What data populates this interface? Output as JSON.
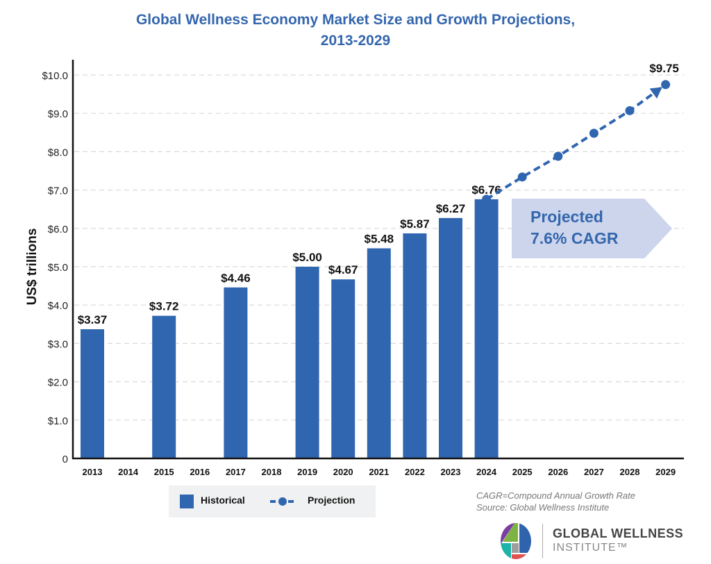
{
  "chart_data": {
    "type": "bar",
    "title": "Global Wellness Economy Market Size and Growth Projections,",
    "title_line2": "2013-2029",
    "xlabel": "",
    "ylabel": "US$ trillions",
    "ylim": [
      0,
      10
    ],
    "y_ticks": [
      {
        "value": 0,
        "label": "0"
      },
      {
        "value": 1,
        "label": "$1.0"
      },
      {
        "value": 2,
        "label": "$2.0"
      },
      {
        "value": 3,
        "label": "$3.0"
      },
      {
        "value": 4,
        "label": "$4.0"
      },
      {
        "value": 5,
        "label": "$5.0"
      },
      {
        "value": 6,
        "label": "$6.0"
      },
      {
        "value": 7,
        "label": "$7.0"
      },
      {
        "value": 8,
        "label": "$8.0"
      },
      {
        "value": 9,
        "label": "$9.0"
      },
      {
        "value": 10,
        "label": "$10.0"
      }
    ],
    "grid": true,
    "categories": [
      "2013",
      "2014",
      "2015",
      "2016",
      "2017",
      "2018",
      "2019",
      "2020",
      "2021",
      "2022",
      "2023",
      "2024",
      "2025",
      "2026",
      "2027",
      "2028",
      "2029"
    ],
    "series": [
      {
        "name": "Historical",
        "type": "bar",
        "color": "#3066b0",
        "values": [
          3.37,
          null,
          3.72,
          null,
          4.46,
          null,
          5.0,
          4.67,
          5.48,
          5.87,
          6.27,
          6.76,
          null,
          null,
          null,
          null,
          null
        ],
        "labels": [
          "$3.37",
          "",
          "$3.72",
          "",
          "$4.46",
          "",
          "$5.00",
          "$4.67",
          "$5.48",
          "$5.87",
          "$6.27",
          "$6.76",
          "",
          "",
          "",
          "",
          ""
        ]
      },
      {
        "name": "Projection",
        "type": "line",
        "style": "dashed",
        "color": "#3066b0",
        "values": [
          null,
          null,
          null,
          null,
          null,
          null,
          null,
          null,
          null,
          null,
          null,
          6.76,
          7.34,
          7.88,
          8.48,
          9.07,
          9.75
        ],
        "end_label": "$9.75"
      }
    ],
    "annotation": {
      "line1": "Projected",
      "line2": "7.6% CAGR",
      "fill": "#ccd5ec",
      "text_color": "#3466ad"
    },
    "legend": {
      "position": "bottom-left",
      "items": [
        {
          "label": "Historical",
          "marker": "square"
        },
        {
          "label": "Projection",
          "marker": "dashed-line-dot"
        }
      ]
    }
  },
  "notes": {
    "line1": "CAGR=Compound Annual Growth Rate",
    "line2": "Source: Global Wellness Institute"
  },
  "logo": {
    "line1": "GLOBAL WELLNESS",
    "line2": "INSTITUTE™"
  },
  "colors": {
    "bar": "#3066b0",
    "title": "#3466ad",
    "grid": "#d9d9d9"
  }
}
